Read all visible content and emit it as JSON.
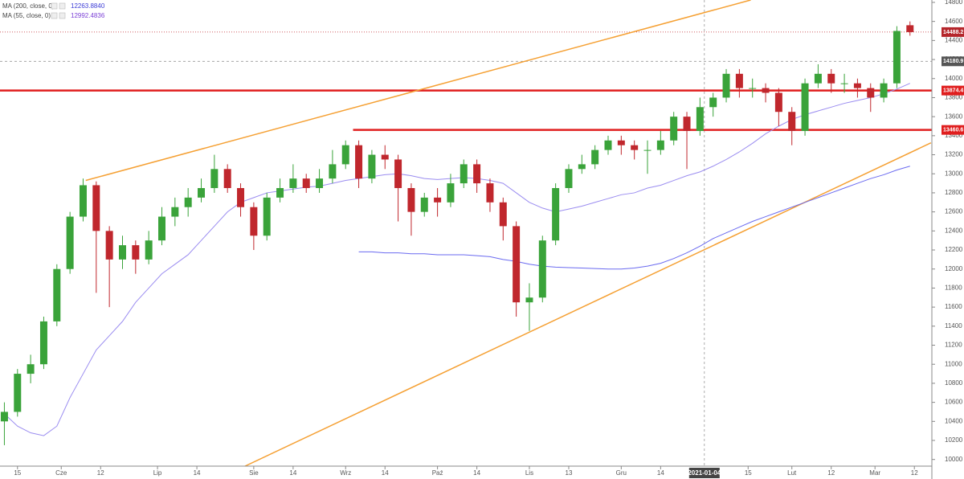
{
  "chart_data": {
    "type": "candlestick",
    "legend": [
      {
        "name": "MA (200, close, 0)",
        "value": "12263.8840",
        "color": "#3b3bd6"
      },
      {
        "name": "MA (55, close, 0)",
        "value": "12992.4836",
        "color": "#7b3fd6"
      }
    ],
    "xlim": [
      -1,
      212
    ],
    "ylim": [
      9930,
      14825
    ],
    "up_color": "#3aa33a",
    "down_color": "#c0272d",
    "x": [
      0,
      3,
      6,
      9,
      12,
      15,
      18,
      21,
      24,
      27,
      30,
      33,
      36,
      39,
      42,
      45,
      48,
      51,
      54,
      57,
      60,
      63,
      66,
      69,
      72,
      75,
      78,
      81,
      84,
      87,
      90,
      93,
      96,
      99,
      102,
      105,
      108,
      111,
      114,
      117,
      120,
      123,
      126,
      129,
      132,
      135,
      138,
      141,
      144,
      147,
      150,
      153,
      156,
      159,
      162,
      165,
      168,
      171,
      174,
      177,
      180,
      183,
      186,
      189,
      192,
      195,
      198,
      201,
      204,
      207
    ],
    "open": [
      10400,
      10500,
      10900,
      11000,
      11450,
      12000,
      12550,
      12880,
      12400,
      12100,
      12250,
      12100,
      12300,
      12550,
      12650,
      12750,
      12850,
      13050,
      12850,
      12650,
      12350,
      12750,
      12850,
      12950,
      12850,
      12950,
      13100,
      13300,
      12950,
      13200,
      13150,
      12850,
      12600,
      12750,
      12700,
      12900,
      13100,
      12900,
      12700,
      12450,
      11650,
      11700,
      12300,
      12850,
      13050,
      13100,
      13250,
      13350,
      13300,
      13250,
      13250,
      13350,
      13600,
      13450,
      13700,
      13800,
      14050,
      13900,
      13900,
      13850,
      13650,
      13450,
      13950,
      14050,
      13950,
      13950,
      13900,
      13800,
      13950,
      14560
    ],
    "high": [
      10600,
      10950,
      11100,
      11500,
      12050,
      12600,
      12950,
      12920,
      12450,
      12350,
      12300,
      12400,
      12650,
      12750,
      12850,
      12950,
      13200,
      13100,
      12900,
      12700,
      12800,
      12950,
      13100,
      13000,
      13050,
      13250,
      13350,
      13350,
      13250,
      13300,
      13200,
      12900,
      12800,
      12850,
      13000,
      13150,
      13150,
      12950,
      12750,
      12500,
      11850,
      12350,
      12900,
      13100,
      13200,
      13300,
      13400,
      13400,
      13350,
      13350,
      13450,
      13650,
      13650,
      13800,
      13850,
      14100,
      14100,
      14000,
      13950,
      13900,
      13700,
      14000,
      14150,
      14100,
      14050,
      14000,
      13950,
      14000,
      14550,
      14600
    ],
    "low": [
      10150,
      10450,
      10800,
      10950,
      11400,
      11950,
      12500,
      11750,
      11600,
      12000,
      11950,
      12050,
      12250,
      12450,
      12550,
      12700,
      12800,
      12800,
      12550,
      12200,
      12300,
      12700,
      12800,
      12800,
      12800,
      12900,
      13050,
      12850,
      12900,
      13050,
      12500,
      12350,
      12550,
      12550,
      12650,
      12850,
      12800,
      12600,
      12300,
      11500,
      11350,
      11650,
      12250,
      12800,
      13000,
      13050,
      13200,
      13200,
      13150,
      13000,
      13200,
      13300,
      13050,
      13400,
      13600,
      13750,
      13800,
      13800,
      13750,
      13500,
      13300,
      13400,
      13900,
      13850,
      13850,
      13800,
      13650,
      13750,
      13900,
      14450
    ],
    "close": [
      10500,
      10900,
      11000,
      11450,
      12000,
      12550,
      12880,
      12400,
      12100,
      12250,
      12100,
      12300,
      12550,
      12650,
      12750,
      12850,
      13050,
      12850,
      12650,
      12350,
      12750,
      12850,
      12950,
      12850,
      12950,
      13100,
      13300,
      12950,
      13200,
      13150,
      12850,
      12600,
      12750,
      12700,
      12900,
      13100,
      12900,
      12700,
      12450,
      11650,
      11700,
      12300,
      12850,
      13050,
      13100,
      13250,
      13350,
      13300,
      13250,
      13250,
      13350,
      13600,
      13450,
      13700,
      13800,
      14050,
      13900,
      13900,
      13850,
      13650,
      13450,
      13950,
      14050,
      13950,
      13950,
      13900,
      13800,
      13950,
      14500,
      14488
    ],
    "series": [
      {
        "name": "MA (200, close, 0)",
        "color": "#6a6af0",
        "values": [
          null,
          null,
          null,
          null,
          null,
          null,
          null,
          null,
          null,
          null,
          null,
          null,
          null,
          null,
          null,
          null,
          null,
          null,
          null,
          null,
          null,
          null,
          null,
          null,
          null,
          null,
          null,
          12180,
          12180,
          12170,
          12170,
          12160,
          12160,
          12150,
          12150,
          12150,
          12140,
          12130,
          12100,
          12080,
          12050,
          12030,
          12020,
          12015,
          12010,
          12005,
          12000,
          12000,
          12010,
          12030,
          12060,
          12110,
          12170,
          12240,
          12320,
          12380,
          12440,
          12500,
          12550,
          12600,
          12650,
          12700,
          12750,
          12800,
          12850,
          12900,
          12950,
          12990,
          13040,
          13080
        ]
      },
      {
        "name": "MA (55, close, 0)",
        "color": "#9a8cf0",
        "values": [
          10480,
          10350,
          10280,
          10250,
          10350,
          10650,
          10900,
          11150,
          11300,
          11450,
          11650,
          11800,
          11950,
          12050,
          12150,
          12300,
          12450,
          12600,
          12700,
          12750,
          12800,
          12820,
          12840,
          12860,
          12870,
          12900,
          12930,
          12950,
          12970,
          12990,
          13000,
          12980,
          12950,
          12940,
          12950,
          12960,
          12950,
          12930,
          12900,
          12800,
          12700,
          12640,
          12600,
          12630,
          12660,
          12700,
          12740,
          12780,
          12800,
          12850,
          12880,
          12930,
          12980,
          13020,
          13080,
          13150,
          13230,
          13320,
          13420,
          13500,
          13570,
          13620,
          13660,
          13700,
          13740,
          13770,
          13800,
          13840,
          13890,
          13950
        ]
      }
    ],
    "trendlines": [
      {
        "color": "#f5a033",
        "x": [
          18.6,
          170.6
        ],
        "y": [
          12930,
          14825
        ]
      },
      {
        "color": "#f5a033",
        "x": [
          55,
          211.8
        ],
        "y": [
          9930,
          13325
        ]
      }
    ],
    "levels": [
      {
        "value": 14488.2,
        "style": "dotted",
        "color": "#c0272d",
        "label_bg": "#b5262b",
        "from": -1
      },
      {
        "value": 14180.9,
        "style": "dashed",
        "color": "#999999",
        "label_bg": "#555555",
        "from": -1
      },
      {
        "value": 13874.4,
        "style": "solid",
        "color": "#e01e1e",
        "label_bg": "#e01e1e",
        "from": -1
      },
      {
        "value": 13460.6,
        "style": "solid",
        "color": "#e01e1e",
        "label_bg": "#e01e1e",
        "from": 79.7
      }
    ],
    "crosshair_x": {
      "value": 160,
      "label": "2021-01-04"
    },
    "yticks": [
      10000,
      10200,
      10400,
      10600,
      10800,
      11000,
      11200,
      11400,
      11600,
      11800,
      12000,
      12200,
      12400,
      12600,
      12800,
      13000,
      13200,
      13400,
      13600,
      13800,
      14000,
      14200,
      14400,
      14600,
      14800
    ],
    "xticks": [
      {
        "value": 3,
        "label": "15"
      },
      {
        "value": 13,
        "label": "Cze"
      },
      {
        "value": 22,
        "label": "12"
      },
      {
        "value": 35,
        "label": "Lip"
      },
      {
        "value": 44,
        "label": "14"
      },
      {
        "value": 57,
        "label": "Sie"
      },
      {
        "value": 66,
        "label": "14"
      },
      {
        "value": 78,
        "label": "Wrz"
      },
      {
        "value": 87,
        "label": "14"
      },
      {
        "value": 99,
        "label": "Paź"
      },
      {
        "value": 108,
        "label": "14"
      },
      {
        "value": 120,
        "label": "Lis"
      },
      {
        "value": 129,
        "label": "13"
      },
      {
        "value": 141,
        "label": "Gru"
      },
      {
        "value": 150,
        "label": "14"
      },
      {
        "value": 170,
        "label": "15"
      },
      {
        "value": 180,
        "label": "Lut"
      },
      {
        "value": 189,
        "label": "12"
      },
      {
        "value": 199,
        "label": "Mar"
      },
      {
        "value": 208,
        "label": "12"
      }
    ]
  }
}
